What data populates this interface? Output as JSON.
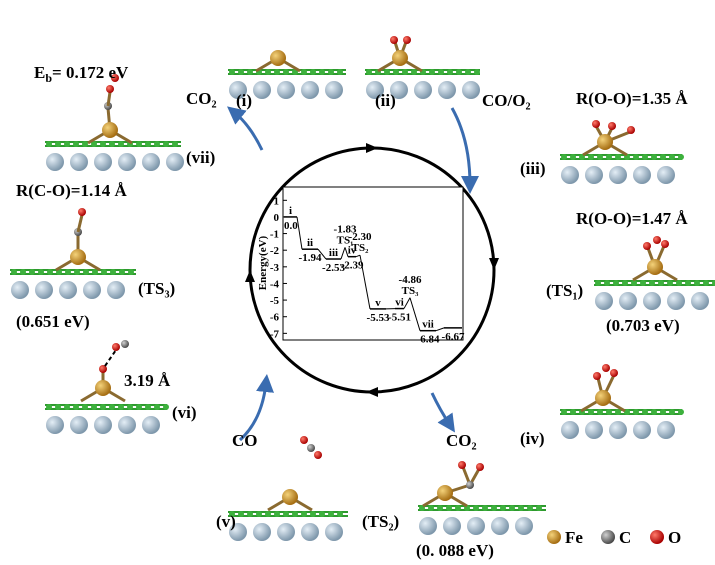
{
  "labels": {
    "eb": {
      "symbol": "E",
      "sub": "b",
      "rest": "= 0.172 eV"
    },
    "co2_top": "CO₂",
    "state_i": "(i)",
    "state_ii": "(ii)",
    "co_o2": "CO/O₂",
    "roo_iii": "R(O-O)=1.35 Å",
    "state_iii": "(iii)",
    "roo_ts1": "R(O-O)=1.47 Å",
    "state_ts1": "(TS₁)",
    "ts1_energy": "(0.703 eV)",
    "state_iv": "(iv)",
    "co2_bottom": "CO₂",
    "state_ts2": "(TS₂)",
    "ts2_energy": "(0. 088 eV)",
    "state_v": "(v)",
    "co_bottom": "CO",
    "state_vi": "(vi)",
    "dist_vi": "3.19 Å",
    "rco_ts3": "R(C-O)=1.14 Å",
    "state_ts3": "(TS₃)",
    "ts3_energy": "(0.651 eV)",
    "state_vii": "(vii)"
  },
  "legend": [
    "Fe",
    "C",
    "O"
  ],
  "chart_data": {
    "type": "step",
    "y_label": "Energy(eV)",
    "categories": [
      "i",
      "ii",
      "iii",
      "TS₁",
      "iv",
      "TS₂",
      "v",
      "vi",
      "TS₃",
      "vii",
      null
    ],
    "values": [
      0,
      -1.94,
      -2.53,
      -1.83,
      -2.39,
      -2.3,
      -5.53,
      -5.51,
      -4.86,
      -6.84,
      -6.67
    ],
    "value_labels": [
      "0.0",
      "-1.94",
      "-2.53",
      "-1.83",
      "-2.39",
      "-2.30",
      "-5.53",
      "-5.51",
      "-4.86",
      "-6.84",
      "-6.67"
    ],
    "ylim": [
      -7.4,
      1.8
    ],
    "yticks": [
      1,
      0,
      -1,
      -2,
      -3,
      -4,
      -5,
      -6,
      -7
    ],
    "color": "#000000"
  }
}
